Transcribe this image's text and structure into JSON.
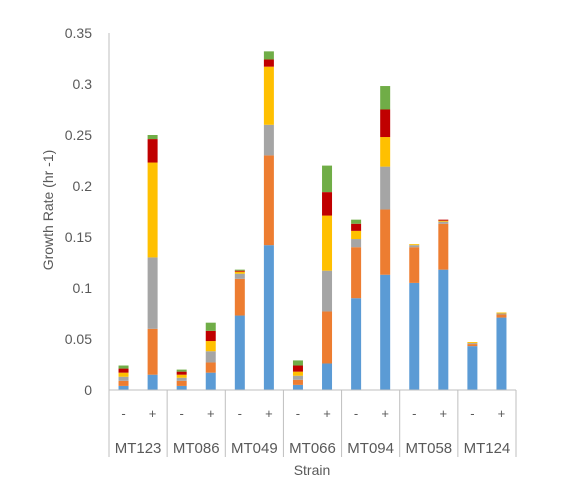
{
  "chart_data": {
    "type": "bar",
    "stacked": true,
    "ylabel": "Growth Rate (hr -1)",
    "xlabel": "Strain",
    "ylim": [
      0,
      0.35
    ],
    "yticks": [
      0,
      0.05,
      0.1,
      0.15,
      0.2,
      0.25,
      0.3,
      0.35
    ],
    "ytick_labels": [
      "0",
      "0.05",
      "0.1",
      "0.15",
      "0.2",
      "0.25",
      "0.3",
      "0.35"
    ],
    "grid": false,
    "legend": "none",
    "groups": [
      {
        "label": "MT123",
        "categories": [
          "-",
          "+"
        ]
      },
      {
        "label": "MT086",
        "categories": [
          "-",
          "+"
        ]
      },
      {
        "label": "MT049",
        "categories": [
          "-",
          "+"
        ]
      },
      {
        "label": "MT066",
        "categories": [
          "-",
          "+"
        ]
      },
      {
        "label": "MT094",
        "categories": [
          "-",
          "+"
        ]
      },
      {
        "label": "MT058",
        "categories": [
          "-",
          "+"
        ]
      },
      {
        "label": "MT124",
        "categories": [
          "-",
          "+"
        ]
      }
    ],
    "series": [
      {
        "color": "#5B9BD5",
        "values": [
          0.004,
          0.015,
          0.004,
          0.017,
          0.073,
          0.142,
          0.005,
          0.026,
          0.09,
          0.113,
          0.105,
          0.118,
          0.043,
          0.071
        ]
      },
      {
        "color": "#ED7D31",
        "values": [
          0.005,
          0.045,
          0.005,
          0.01,
          0.036,
          0.088,
          0.005,
          0.051,
          0.05,
          0.064,
          0.035,
          0.045,
          0.002,
          0.003
        ]
      },
      {
        "color": "#A5A5A5",
        "values": [
          0.004,
          0.07,
          0.003,
          0.011,
          0.005,
          0.03,
          0.004,
          0.04,
          0.008,
          0.042,
          0.002,
          0.002,
          0.001,
          0.001
        ]
      },
      {
        "color": "#FFC000",
        "values": [
          0.004,
          0.093,
          0.003,
          0.01,
          0.002,
          0.057,
          0.004,
          0.054,
          0.008,
          0.029,
          0.001,
          0.001,
          0.001,
          0.001
        ]
      },
      {
        "color": "#C00000",
        "values": [
          0.004,
          0.023,
          0.003,
          0.01,
          0.001,
          0.007,
          0.006,
          0.023,
          0.007,
          0.027,
          0.0,
          0.001,
          0.0,
          0.0
        ]
      },
      {
        "color": "#70AD47",
        "values": [
          0.003,
          0.004,
          0.002,
          0.008,
          0.001,
          0.008,
          0.005,
          0.026,
          0.004,
          0.023,
          0.0,
          0.0,
          0.0,
          0.0
        ]
      }
    ]
  }
}
